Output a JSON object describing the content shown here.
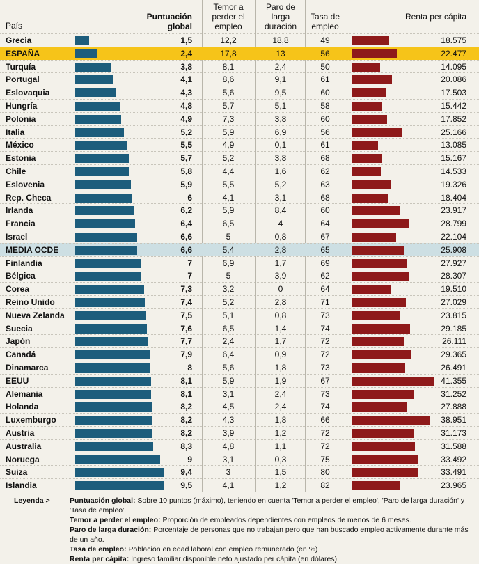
{
  "header": {
    "country": "País",
    "score": "Puntuación global",
    "temor": "Temor a perder el empleo",
    "paro": "Paro de larga duración",
    "tasa": "Tasa de empleo",
    "renta": "Renta per cápita"
  },
  "colors": {
    "score_bar": "#1d5d7c",
    "renta_bar": "#8e1a1a",
    "highlight_row": "#f6c419",
    "average_row": "#cddfe3",
    "background": "#f3f1ea"
  },
  "chart_data": {
    "type": "bar",
    "columns": [
      "País",
      "Puntuación global",
      "Temor a perder el empleo",
      "Paro de larga duración",
      "Tasa de empleo",
      "Renta per cápita"
    ],
    "score_scale_max": 10,
    "renta_scale_max": 42000,
    "rows": [
      {
        "country": "Grecia",
        "score": "1,5",
        "score_value": 1.5,
        "temor": "12,2",
        "paro": "18,8",
        "tasa": "49",
        "renta": "18.575",
        "renta_value": 18575,
        "style": "normal"
      },
      {
        "country": "ESPAÑA",
        "score": "2,4",
        "score_value": 2.4,
        "temor": "17,8",
        "paro": "13",
        "tasa": "56",
        "renta": "22.477",
        "renta_value": 22477,
        "style": "highlight"
      },
      {
        "country": "Turquía",
        "score": "3,8",
        "score_value": 3.8,
        "temor": "8,1",
        "paro": "2,4",
        "tasa": "50",
        "renta": "14.095",
        "renta_value": 14095,
        "style": "normal"
      },
      {
        "country": "Portugal",
        "score": "4,1",
        "score_value": 4.1,
        "temor": "8,6",
        "paro": "9,1",
        "tasa": "61",
        "renta": "20.086",
        "renta_value": 20086,
        "style": "normal"
      },
      {
        "country": "Eslovaquia",
        "score": "4,3",
        "score_value": 4.3,
        "temor": "5,6",
        "paro": "9,5",
        "tasa": "60",
        "renta": "17.503",
        "renta_value": 17503,
        "style": "normal"
      },
      {
        "country": "Hungría",
        "score": "4,8",
        "score_value": 4.8,
        "temor": "5,7",
        "paro": "5,1",
        "tasa": "58",
        "renta": "15.442",
        "renta_value": 15442,
        "style": "normal"
      },
      {
        "country": "Polonia",
        "score": "4,9",
        "score_value": 4.9,
        "temor": "7,3",
        "paro": "3,8",
        "tasa": "60",
        "renta": "17.852",
        "renta_value": 17852,
        "style": "normal"
      },
      {
        "country": "Italia",
        "score": "5,2",
        "score_value": 5.2,
        "temor": "5,9",
        "paro": "6,9",
        "tasa": "56",
        "renta": "25.166",
        "renta_value": 25166,
        "style": "normal"
      },
      {
        "country": "México",
        "score": "5,5",
        "score_value": 5.5,
        "temor": "4,9",
        "paro": "0,1",
        "tasa": "61",
        "renta": "13.085",
        "renta_value": 13085,
        "style": "normal"
      },
      {
        "country": "Estonia",
        "score": "5,7",
        "score_value": 5.7,
        "temor": "5,2",
        "paro": "3,8",
        "tasa": "68",
        "renta": "15.167",
        "renta_value": 15167,
        "style": "normal"
      },
      {
        "country": "Chile",
        "score": "5,8",
        "score_value": 5.8,
        "temor": "4,4",
        "paro": "1,6",
        "tasa": "62",
        "renta": "14.533",
        "renta_value": 14533,
        "style": "normal"
      },
      {
        "country": "Eslovenia",
        "score": "5,9",
        "score_value": 5.9,
        "temor": "5,5",
        "paro": "5,2",
        "tasa": "63",
        "renta": "19.326",
        "renta_value": 19326,
        "style": "normal"
      },
      {
        "country": "Rep. Checa",
        "score": "6",
        "score_value": 6,
        "temor": "4,1",
        "paro": "3,1",
        "tasa": "68",
        "renta": "18.404",
        "renta_value": 18404,
        "style": "normal"
      },
      {
        "country": "Irlanda",
        "score": "6,2",
        "score_value": 6.2,
        "temor": "5,9",
        "paro": "8,4",
        "tasa": "60",
        "renta": "23.917",
        "renta_value": 23917,
        "style": "normal"
      },
      {
        "country": "Francia",
        "score": "6,4",
        "score_value": 6.4,
        "temor": "6,5",
        "paro": "4",
        "tasa": "64",
        "renta": "28.799",
        "renta_value": 28799,
        "style": "normal"
      },
      {
        "country": "Israel",
        "score": "6,6",
        "score_value": 6.6,
        "temor": "5",
        "paro": "0,8",
        "tasa": "67",
        "renta": "22.104",
        "renta_value": 22104,
        "style": "normal"
      },
      {
        "country": "MEDIA OCDE",
        "score": "6,6",
        "score_value": 6.6,
        "temor": "5,4",
        "paro": "2,8",
        "tasa": "65",
        "renta": "25.908",
        "renta_value": 25908,
        "style": "average"
      },
      {
        "country": "Finlandia",
        "score": "7",
        "score_value": 7,
        "temor": "6,9",
        "paro": "1,7",
        "tasa": "69",
        "renta": "27.927",
        "renta_value": 27927,
        "style": "normal"
      },
      {
        "country": "Bélgica",
        "score": "7",
        "score_value": 7,
        "temor": "5",
        "paro": "3,9",
        "tasa": "62",
        "renta": "28.307",
        "renta_value": 28307,
        "style": "normal"
      },
      {
        "country": "Corea",
        "score": "7,3",
        "score_value": 7.3,
        "temor": "3,2",
        "paro": "0",
        "tasa": "64",
        "renta": "19.510",
        "renta_value": 19510,
        "style": "normal"
      },
      {
        "country": "Reino Unido",
        "score": "7,4",
        "score_value": 7.4,
        "temor": "5,2",
        "paro": "2,8",
        "tasa": "71",
        "renta": "27.029",
        "renta_value": 27029,
        "style": "normal"
      },
      {
        "country": "Nueva Zelanda",
        "score": "7,5",
        "score_value": 7.5,
        "temor": "5,1",
        "paro": "0,8",
        "tasa": "73",
        "renta": "23.815",
        "renta_value": 23815,
        "style": "normal"
      },
      {
        "country": "Suecia",
        "score": "7,6",
        "score_value": 7.6,
        "temor": "6,5",
        "paro": "1,4",
        "tasa": "74",
        "renta": "29.185",
        "renta_value": 29185,
        "style": "normal"
      },
      {
        "country": "Japón",
        "score": "7,7",
        "score_value": 7.7,
        "temor": "2,4",
        "paro": "1,7",
        "tasa": "72",
        "renta": "26.111",
        "renta_value": 26111,
        "style": "normal"
      },
      {
        "country": "Canadá",
        "score": "7,9",
        "score_value": 7.9,
        "temor": "6,4",
        "paro": "0,9",
        "tasa": "72",
        "renta": "29.365",
        "renta_value": 29365,
        "style": "normal"
      },
      {
        "country": "Dinamarca",
        "score": "8",
        "score_value": 8,
        "temor": "5,6",
        "paro": "1,8",
        "tasa": "73",
        "renta": "26.491",
        "renta_value": 26491,
        "style": "normal"
      },
      {
        "country": "EEUU",
        "score": "8,1",
        "score_value": 8.1,
        "temor": "5,9",
        "paro": "1,9",
        "tasa": "67",
        "renta": "41.355",
        "renta_value": 41355,
        "style": "normal"
      },
      {
        "country": "Alemania",
        "score": "8,1",
        "score_value": 8.1,
        "temor": "3,1",
        "paro": "2,4",
        "tasa": "73",
        "renta": "31.252",
        "renta_value": 31252,
        "style": "normal"
      },
      {
        "country": "Holanda",
        "score": "8,2",
        "score_value": 8.2,
        "temor": "4,5",
        "paro": "2,4",
        "tasa": "74",
        "renta": "27.888",
        "renta_value": 27888,
        "style": "normal"
      },
      {
        "country": "Luxemburgo",
        "score": "8,2",
        "score_value": 8.2,
        "temor": "4,3",
        "paro": "1,8",
        "tasa": "66",
        "renta": "38.951",
        "renta_value": 38951,
        "style": "normal"
      },
      {
        "country": "Austria",
        "score": "8,2",
        "score_value": 8.2,
        "temor": "3,9",
        "paro": "1,2",
        "tasa": "72",
        "renta": "31.173",
        "renta_value": 31173,
        "style": "normal"
      },
      {
        "country": "Australia",
        "score": "8,3",
        "score_value": 8.3,
        "temor": "4,8",
        "paro": "1,1",
        "tasa": "72",
        "renta": "31.588",
        "renta_value": 31588,
        "style": "normal"
      },
      {
        "country": "Noruega",
        "score": "9",
        "score_value": 9,
        "temor": "3,1",
        "paro": "0,3",
        "tasa": "75",
        "renta": "33.492",
        "renta_value": 33492,
        "style": "normal"
      },
      {
        "country": "Suiza",
        "score": "9,4",
        "score_value": 9.4,
        "temor": "3",
        "paro": "1,5",
        "tasa": "80",
        "renta": "33.491",
        "renta_value": 33491,
        "style": "normal"
      },
      {
        "country": "Islandia",
        "score": "9,5",
        "score_value": 9.5,
        "temor": "4,1",
        "paro": "1,2",
        "tasa": "82",
        "renta": "23.965",
        "renta_value": 23965,
        "style": "normal"
      }
    ]
  },
  "legend": {
    "title": "Leyenda >",
    "items": [
      {
        "term": "Puntuación global:",
        "text": "Sobre 10 puntos (máximo), teniendo en cuenta 'Temor a perder el empleo', 'Paro de larga duración' y 'Tasa de empleo'."
      },
      {
        "term": "Temor a perder el empleo:",
        "text": "Proporción de empleados dependientes con empleos de menos de 6 meses."
      },
      {
        "term": "Paro de larga duración:",
        "text": "Porcentaje de personas que no trabajan pero que han buscado empleo activamente durante más de un año."
      },
      {
        "term": "Tasa de empleo:",
        "text": "Población en edad laboral con empleo remunerado (en %)"
      },
      {
        "term": "Renta per cápita:",
        "text": "Ingreso familiar disponible neto ajustado per cápita (en dólares)"
      }
    ]
  }
}
